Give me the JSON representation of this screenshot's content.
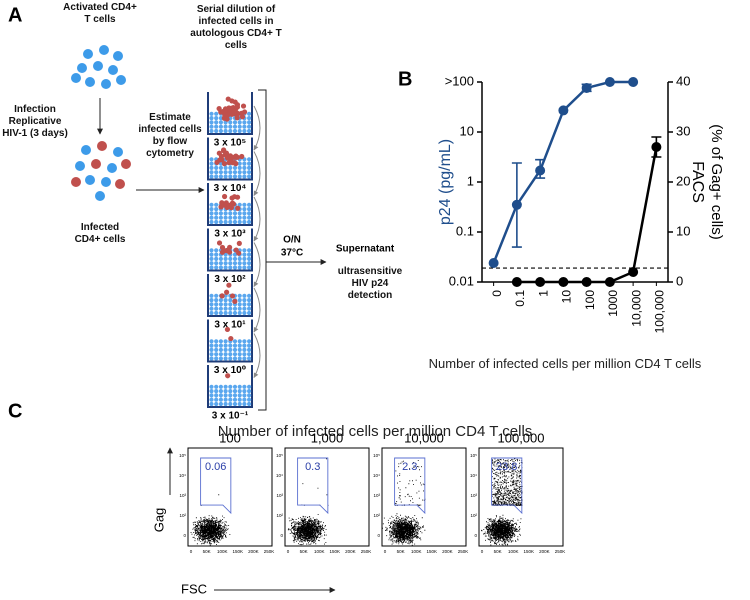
{
  "panel_labels": [
    "A",
    "B",
    "C"
  ],
  "panel_a": {
    "activated": "Activated CD4+ T cells",
    "infection": "Infection Replicative HIV-1 (3 days)",
    "infected": "Infected CD4+ cells",
    "estimate": "Estimate infected cells by flow cytometry",
    "serial": "Serial dilution of infected cells in autologous CD4+ T cells",
    "dilutions": [
      "3 x 10⁵",
      "3 x 10⁴",
      "3 x 10³",
      "3 x 10²",
      "3 x 10¹",
      "3 x 10⁰",
      "3 x 10⁻¹"
    ],
    "incubation": [
      "O/N",
      "37°C"
    ],
    "supernatant": "Supernatant",
    "detection": "ultrasensitive HIV p24 detection"
  },
  "chart_data": {
    "type": "line",
    "categories": [
      "0",
      "0.1",
      "1",
      "10",
      "100",
      "1000",
      "10,000",
      "100,000"
    ],
    "series": [
      {
        "color": "#1f4e8c",
        "axis": "y",
        "values": [
          0.024,
          0.35,
          1.7,
          27,
          76,
          100,
          100,
          null
        ],
        "error_low": [
          null,
          0.05,
          1.2,
          null,
          65,
          null,
          null,
          null
        ],
        "error_high": [
          null,
          2.4,
          2.8,
          null,
          90,
          null,
          null,
          null
        ]
      },
      {
        "color": "#000000",
        "axis": "y2",
        "values": [
          null,
          0,
          0,
          0,
          0,
          0,
          2,
          27
        ],
        "error_low": [
          null,
          null,
          null,
          null,
          null,
          null,
          null,
          25
        ],
        "error_high": [
          null,
          null,
          null,
          null,
          null,
          null,
          null,
          29
        ]
      }
    ],
    "ylim": [
      0.01,
      100
    ],
    "yticks": [
      0.01,
      0.1,
      1,
      10,
      {
        "value": 100,
        "label": ">100"
      }
    ],
    "log_scale_y": true,
    "y2lim": [
      0,
      40
    ],
    "y2ticks": [
      0,
      10,
      20,
      30,
      40
    ],
    "threshold": 0.019,
    "ylabel": "p24 (pg/mL)",
    "y2label": [
      "FACS",
      "(% of Gag+ cells)"
    ],
    "xlabel": "Number of infected cells per million CD4 T cells"
  },
  "panel_c": {
    "title": "Number of infected cells per million CD4 T cells",
    "plots": [
      {
        "title": "100",
        "gate": 0.06
      },
      {
        "title": "1,000",
        "gate": 0.3
      },
      {
        "title": "10,000",
        "gate": 2.3
      },
      {
        "title": "100,000",
        "gate": 23.8
      }
    ],
    "y_tick_labels": [
      "10⁵",
      "10⁴",
      "10³",
      "10²",
      "0"
    ],
    "x_tick_labels": [
      "0",
      "50K",
      "100K",
      "150K",
      "200K",
      "250K"
    ],
    "ylabel": "Gag",
    "xlabel": "FSC"
  }
}
